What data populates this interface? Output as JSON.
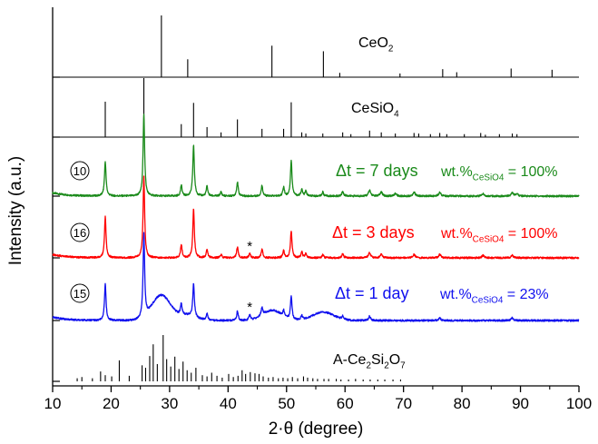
{
  "chart_data": {
    "type": "line",
    "xlabel": "2·θ (degree)",
    "ylabel": "Intensity (a.u.)",
    "xlim": [
      10,
      100
    ],
    "x_ticks": [
      10,
      20,
      30,
      40,
      50,
      60,
      70,
      80,
      90,
      100
    ],
    "x_tick_labels": [
      "10",
      "20",
      "30",
      "40",
      "50",
      "60",
      "70",
      "80",
      "90",
      "100"
    ],
    "grid": false,
    "colors": {
      "axis": "#000000",
      "green": "#1a8a1a",
      "red": "#ff0000",
      "blue": "#1010ee",
      "ref": "#000000"
    },
    "reference_patterns": [
      {
        "label_main": "CeO",
        "label_sub": "2",
        "peaks": [
          [
            28.6,
            1.0
          ],
          [
            33.1,
            0.29
          ],
          [
            47.5,
            0.51
          ],
          [
            56.3,
            0.42
          ],
          [
            59.1,
            0.07
          ],
          [
            69.4,
            0.06
          ],
          [
            76.7,
            0.13
          ],
          [
            79.1,
            0.08
          ],
          [
            88.4,
            0.14
          ],
          [
            95.4,
            0.12
          ]
        ]
      },
      {
        "label_main": "CeSiO",
        "label_sub": "4",
        "peaks": [
          [
            19.0,
            0.6
          ],
          [
            25.6,
            1.0
          ],
          [
            32.0,
            0.22
          ],
          [
            34.1,
            0.58
          ],
          [
            36.4,
            0.17
          ],
          [
            38.8,
            0.08
          ],
          [
            41.6,
            0.3
          ],
          [
            45.8,
            0.14
          ],
          [
            49.5,
            0.14
          ],
          [
            50.8,
            0.59
          ],
          [
            52.6,
            0.08
          ],
          [
            53.3,
            0.06
          ],
          [
            56.2,
            0.06
          ],
          [
            59.6,
            0.08
          ],
          [
            61.0,
            0.05
          ],
          [
            64.2,
            0.11
          ],
          [
            66.2,
            0.08
          ],
          [
            68.6,
            0.06
          ],
          [
            71.8,
            0.07
          ],
          [
            72.6,
            0.06
          ],
          [
            74.6,
            0.05
          ],
          [
            76.2,
            0.07
          ],
          [
            77.4,
            0.05
          ],
          [
            80.4,
            0.05
          ],
          [
            83.2,
            0.07
          ],
          [
            84.0,
            0.04
          ],
          [
            86.4,
            0.05
          ],
          [
            88.6,
            0.06
          ],
          [
            89.4,
            0.05
          ]
        ]
      },
      {
        "label_main": "A-Ce",
        "label_parts": [
          "A-Ce",
          "2",
          "Si",
          "2",
          "O",
          "7"
        ],
        "peaks": [
          [
            14.2,
            0.05
          ],
          [
            15.0,
            0.07
          ],
          [
            16.8,
            0.05
          ],
          [
            18.2,
            0.16
          ],
          [
            19.0,
            0.1
          ],
          [
            20.1,
            0.08
          ],
          [
            21.4,
            0.34
          ],
          [
            23.1,
            0.09
          ],
          [
            25.3,
            0.26
          ],
          [
            25.9,
            0.22
          ],
          [
            26.6,
            0.41
          ],
          [
            27.2,
            0.6
          ],
          [
            27.9,
            0.28
          ],
          [
            28.9,
            0.75
          ],
          [
            29.5,
            0.36
          ],
          [
            30.2,
            0.24
          ],
          [
            30.9,
            0.4
          ],
          [
            31.6,
            0.2
          ],
          [
            32.3,
            0.32
          ],
          [
            33.0,
            0.18
          ],
          [
            33.7,
            0.14
          ],
          [
            34.5,
            0.22
          ],
          [
            35.6,
            0.1
          ],
          [
            36.4,
            0.08
          ],
          [
            37.2,
            0.14
          ],
          [
            38.1,
            0.09
          ],
          [
            39.0,
            0.06
          ],
          [
            40.1,
            0.12
          ],
          [
            40.9,
            0.07
          ],
          [
            41.7,
            0.09
          ],
          [
            42.4,
            0.18
          ],
          [
            43.0,
            0.12
          ],
          [
            43.8,
            0.15
          ],
          [
            44.6,
            0.13
          ],
          [
            45.3,
            0.12
          ],
          [
            46.0,
            0.08
          ],
          [
            46.9,
            0.06
          ],
          [
            47.7,
            0.07
          ],
          [
            48.6,
            0.05
          ],
          [
            49.4,
            0.06
          ],
          [
            50.2,
            0.05
          ],
          [
            51.0,
            0.07
          ],
          [
            51.9,
            0.05
          ],
          [
            52.9,
            0.08
          ],
          [
            53.6,
            0.06
          ],
          [
            54.5,
            0.05
          ],
          [
            55.3,
            0.04
          ],
          [
            56.4,
            0.04
          ],
          [
            57.2,
            0.04
          ],
          [
            58.5,
            0.04
          ],
          [
            59.3,
            0.03
          ],
          [
            60.6,
            0.03
          ],
          [
            61.8,
            0.04
          ],
          [
            63.1,
            0.03
          ],
          [
            64.3,
            0.03
          ],
          [
            65.6,
            0.03
          ],
          [
            66.8,
            0.03
          ],
          [
            68.2,
            0.03
          ],
          [
            69.5,
            0.03
          ]
        ]
      }
    ],
    "series": [
      {
        "marker": "10",
        "name_prefix": "Δt = 7 days",
        "wt_prefix": "wt.%",
        "wt_sub": "CeSiO4",
        "wt_value": "= 100%",
        "color": "#1a8a1a",
        "background": [],
        "star_at": null,
        "peaks": [
          [
            19.0,
            0.42
          ],
          [
            25.6,
            1.0
          ],
          [
            32.0,
            0.13
          ],
          [
            34.1,
            0.62
          ],
          [
            36.4,
            0.12
          ],
          [
            38.8,
            0.05
          ],
          [
            41.6,
            0.17
          ],
          [
            45.8,
            0.13
          ],
          [
            49.5,
            0.11
          ],
          [
            50.8,
            0.43
          ],
          [
            52.6,
            0.08
          ],
          [
            53.3,
            0.06
          ],
          [
            56.2,
            0.05
          ],
          [
            59.6,
            0.06
          ],
          [
            64.2,
            0.07
          ],
          [
            66.2,
            0.05
          ],
          [
            68.6,
            0.03
          ],
          [
            71.8,
            0.05
          ],
          [
            76.2,
            0.05
          ],
          [
            83.6,
            0.03
          ],
          [
            88.6,
            0.04
          ],
          [
            89.4,
            0.03
          ]
        ]
      },
      {
        "marker": "16",
        "name_prefix": "Δt = 3 days",
        "wt_prefix": "wt.%",
        "wt_sub": "CeSiO4",
        "wt_value": "= 100%",
        "color": "#ff0000",
        "background": [],
        "star_at": 43.7,
        "peaks": [
          [
            19.0,
            0.5
          ],
          [
            25.6,
            1.0
          ],
          [
            32.0,
            0.16
          ],
          [
            34.1,
            0.6
          ],
          [
            36.4,
            0.1
          ],
          [
            38.8,
            0.04
          ],
          [
            41.6,
            0.13
          ],
          [
            43.7,
            0.06
          ],
          [
            45.8,
            0.11
          ],
          [
            49.5,
            0.09
          ],
          [
            50.8,
            0.33
          ],
          [
            52.6,
            0.07
          ],
          [
            53.3,
            0.05
          ],
          [
            56.2,
            0.04
          ],
          [
            59.6,
            0.05
          ],
          [
            64.2,
            0.06
          ],
          [
            66.2,
            0.04
          ],
          [
            71.8,
            0.04
          ],
          [
            76.2,
            0.04
          ],
          [
            83.6,
            0.03
          ],
          [
            88.6,
            0.03
          ]
        ]
      },
      {
        "marker": "15",
        "name_prefix": "Δt = 1 day",
        "wt_prefix": "wt.%",
        "wt_sub": "CeSiO4",
        "wt_value": "= 23%",
        "color": "#1010ee",
        "background": [
          [
            28.6,
            0.3,
            1.6
          ],
          [
            47.5,
            0.12,
            1.6
          ],
          [
            56.3,
            0.1,
            1.8
          ],
          [
            33.1,
            0.06,
            1.4
          ]
        ],
        "star_at": 43.7,
        "peaks": [
          [
            19.0,
            0.43
          ],
          [
            25.6,
            1.0
          ],
          [
            32.0,
            0.13
          ],
          [
            34.1,
            0.4
          ],
          [
            36.4,
            0.08
          ],
          [
            41.6,
            0.11
          ],
          [
            43.7,
            0.06
          ],
          [
            45.8,
            0.09
          ],
          [
            49.5,
            0.07
          ],
          [
            50.8,
            0.28
          ],
          [
            52.6,
            0.05
          ],
          [
            59.6,
            0.04
          ],
          [
            64.2,
            0.05
          ],
          [
            76.2,
            0.03
          ],
          [
            88.6,
            0.03
          ]
        ]
      }
    ]
  }
}
